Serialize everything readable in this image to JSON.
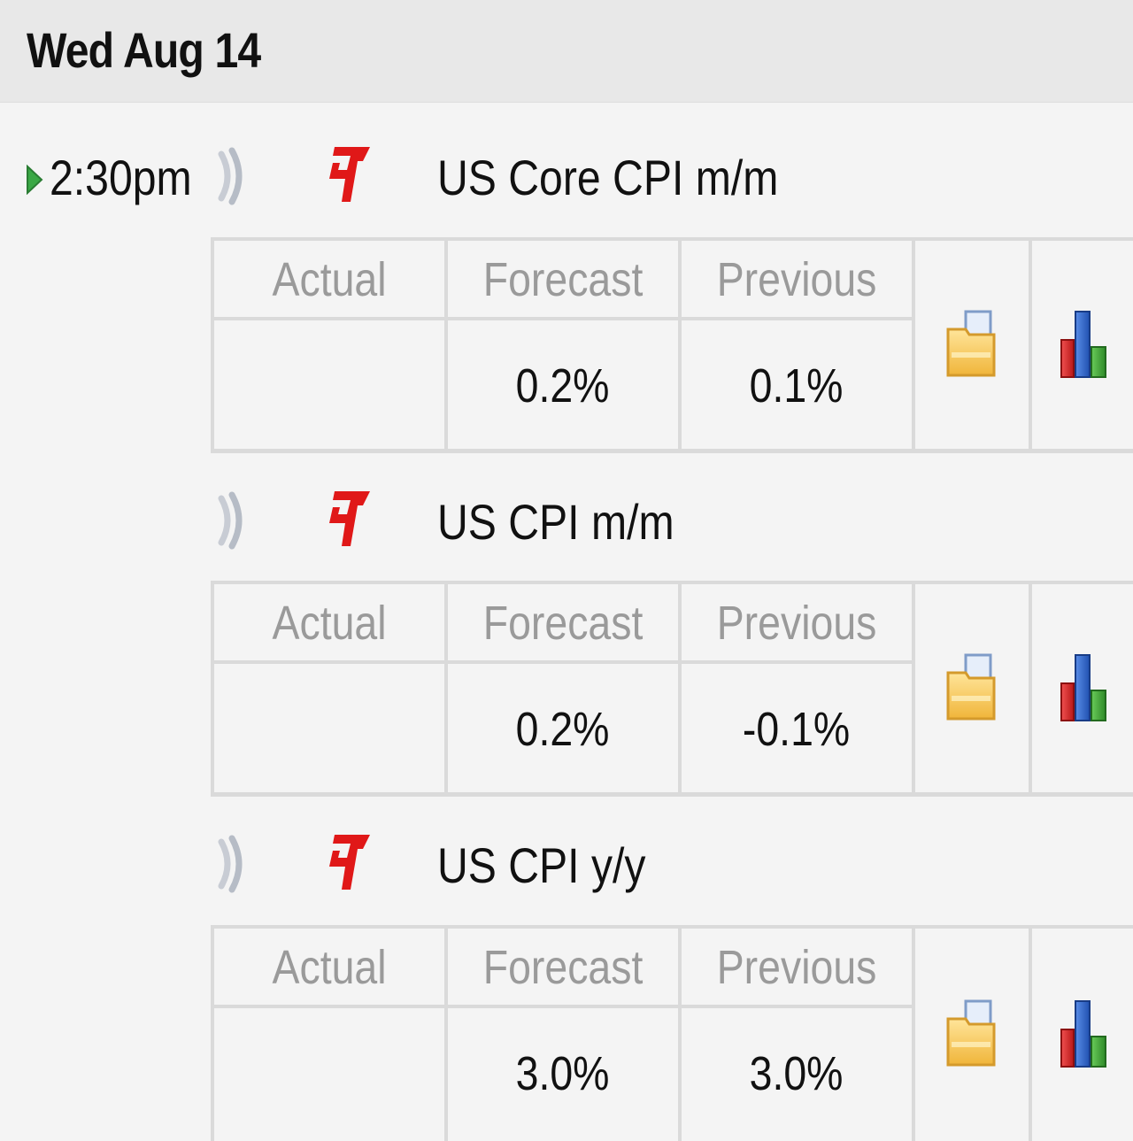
{
  "header": {
    "date": "Wed Aug 14"
  },
  "time": "2:30pm",
  "events": [
    {
      "title": "US Core CPI m/m",
      "col_actual": "Actual",
      "col_forecast": "Forecast",
      "col_previous": "Previous",
      "actual": "",
      "forecast": "0.2%",
      "previous": "0.1%",
      "impact": "high",
      "icons": [
        "speaker-icon",
        "high-impact-icon",
        "folder-icon",
        "bar-chart-icon"
      ]
    },
    {
      "title": "US CPI m/m",
      "col_actual": "Actual",
      "col_forecast": "Forecast",
      "col_previous": "Previous",
      "actual": "",
      "forecast": "0.2%",
      "previous": "-0.1%",
      "impact": "high",
      "icons": [
        "speaker-icon",
        "high-impact-icon",
        "folder-icon",
        "bar-chart-icon"
      ]
    },
    {
      "title": "US CPI y/y",
      "col_actual": "Actual",
      "col_forecast": "Forecast",
      "col_previous": "Previous",
      "actual": "",
      "forecast": "3.0%",
      "previous": "3.0%",
      "impact": "high",
      "icons": [
        "speaker-icon",
        "high-impact-icon",
        "folder-icon",
        "bar-chart-icon"
      ]
    }
  ],
  "colors": {
    "impact_high": "#e01818",
    "header_bg": "#e8e8e8",
    "page_bg": "#f4f4f4",
    "grid_line": "#dadada",
    "column_header_text": "#9a9a9a",
    "arrow_green": "#3aa845"
  }
}
